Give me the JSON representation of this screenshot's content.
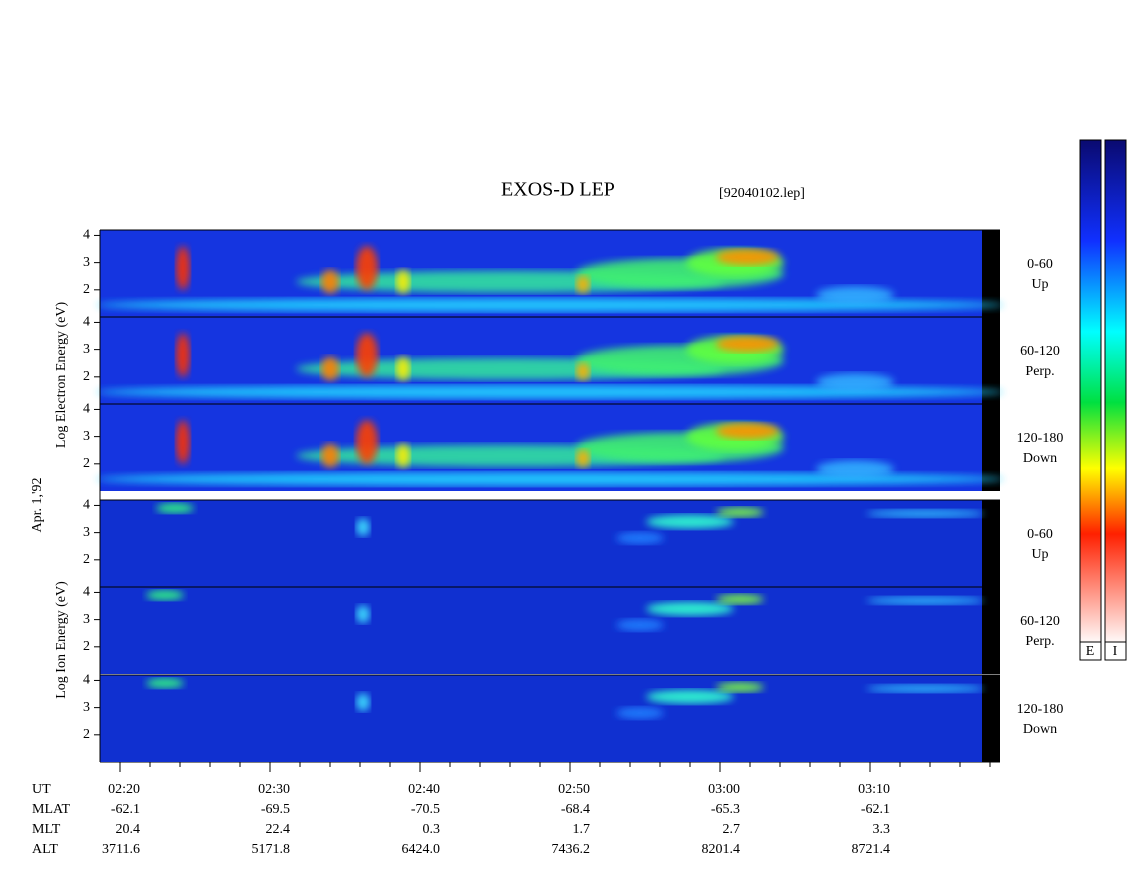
{
  "title": "EXOS-D LEP",
  "file": "[92040102.lep]",
  "date": "Apr. 1,'92",
  "electron_axis_label": "Log  Electron  Energy (eV)",
  "ion_axis_label": "Log  Ion  Energy (eV)",
  "ylim": [
    1,
    4.2
  ],
  "panels": [
    {
      "species": "electron",
      "angle": "0-60",
      "direction": "Up",
      "yticks": [
        2,
        3,
        4
      ]
    },
    {
      "species": "electron",
      "angle": "60-120",
      "direction": "Perp.",
      "yticks": [
        2,
        3,
        4
      ]
    },
    {
      "species": "electron",
      "angle": "120-180",
      "direction": "Down",
      "yticks": [
        2,
        3,
        4
      ]
    },
    {
      "species": "ion",
      "angle": "0-60",
      "direction": "Up",
      "yticks": [
        2,
        3,
        4
      ]
    },
    {
      "species": "ion",
      "angle": "60-120",
      "direction": "Perp.",
      "yticks": [
        2,
        3,
        4
      ]
    },
    {
      "species": "ion",
      "angle": "120-180",
      "direction": "Down",
      "yticks": [
        2,
        3,
        4
      ]
    }
  ],
  "row_labels": [
    "UT",
    "MLAT",
    "MLT",
    "ALT"
  ],
  "columns": [
    [
      "02:20",
      "-62.1",
      "20.4",
      "3711.6"
    ],
    [
      "02:30",
      "-69.5",
      "22.4",
      "5171.8"
    ],
    [
      "02:40",
      "-70.5",
      "0.3",
      "6424.0"
    ],
    [
      "02:50",
      "-68.4",
      "1.7",
      "7436.2"
    ],
    [
      "03:00",
      "-65.3",
      "2.7",
      "8201.4"
    ],
    [
      "03:10",
      "-62.1",
      "3.3",
      "8721.4"
    ]
  ],
  "colorbar_labels": [
    "E",
    "I"
  ]
}
